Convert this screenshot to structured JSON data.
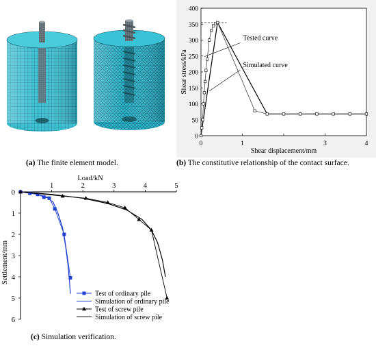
{
  "panel_a": {
    "caption_label": "(a)",
    "caption_text": " The finite element model.",
    "mesh_color": "#2cb6cc"
  },
  "panel_b": {
    "caption_label": "(b)",
    "caption_text": " The constitutive relationship of the contact surface."
  },
  "panel_c": {
    "caption_label": "(c)",
    "caption_text": " Simulation verification."
  },
  "chart_data": [
    {
      "id": "b",
      "type": "line",
      "title": "",
      "xlabel": "Shear displacement/mm",
      "ylabel": "Shear stress/kPa",
      "xlim": [
        0,
        4
      ],
      "ylim": [
        0,
        400
      ],
      "xticks": [
        0,
        1,
        2,
        3,
        4
      ],
      "xtick_labels": [
        "0",
        "1",
        "",
        "3",
        "4"
      ],
      "yticks": [
        0,
        50,
        100,
        150,
        200,
        250,
        300,
        350,
        400
      ],
      "ytick_labels": [
        "0",
        "50",
        "100",
        "150",
        "200",
        "250",
        "300",
        "350",
        "400"
      ],
      "grid": false,
      "annotations": [
        {
          "text": "Tested curve",
          "target_series": "Tested curve"
        },
        {
          "text": "Simulated curve",
          "target_series": "Simulated curve"
        }
      ],
      "peak_reference": {
        "x": [
          0,
          0.62
        ],
        "y": 355,
        "style": "dashed"
      },
      "series": [
        {
          "name": "Tested curve",
          "marker": "square-open",
          "x": [
            0.0,
            0.02,
            0.04,
            0.06,
            0.08,
            0.1,
            0.12,
            0.15,
            0.2,
            0.25,
            0.3,
            0.35,
            0.4,
            1.3,
            1.6,
            2.0,
            2.4,
            2.8,
            3.2,
            3.6,
            4.0
          ],
          "y": [
            0,
            25,
            50,
            100,
            135,
            170,
            205,
            240,
            300,
            330,
            345,
            352,
            355,
            78,
            68,
            68,
            68,
            68,
            68,
            68,
            68
          ]
        },
        {
          "name": "Simulated curve",
          "marker": "none",
          "x": [
            0.0,
            0.4,
            1.6,
            4.0
          ],
          "y": [
            0,
            355,
            68,
            68
          ]
        }
      ]
    },
    {
      "id": "c",
      "type": "line",
      "title": "",
      "xlabel": "Load/kN",
      "ylabel": "Settlement/mm",
      "xlim": [
        0,
        5
      ],
      "ylim": [
        0,
        6
      ],
      "y_inverted": true,
      "x_axis_position": "top",
      "xticks": [
        0,
        1,
        2,
        3,
        4,
        5
      ],
      "xtick_labels": [
        "0",
        "1",
        "2",
        "3",
        "4",
        "5"
      ],
      "yticks": [
        0,
        1,
        2,
        3,
        4,
        5,
        6
      ],
      "ytick_labels": [
        "0",
        "1",
        "2",
        "3",
        "4",
        "5",
        "6"
      ],
      "grid": false,
      "legend_position": "bottom-right",
      "series": [
        {
          "name": "Test of ordinary pile",
          "color": "#1f3fd0",
          "marker": "square",
          "line": false,
          "x": [
            0.0,
            0.3,
            0.55,
            0.75,
            0.92,
            1.1,
            1.4,
            1.6
          ],
          "y": [
            0.0,
            0.07,
            0.12,
            0.25,
            0.3,
            0.8,
            2.0,
            4.05
          ]
        },
        {
          "name": "Simulation of ordinary pile",
          "color": "#1f3fd0",
          "marker": "none",
          "line": true,
          "x": [
            0.0,
            0.5,
            0.85,
            1.05,
            1.2,
            1.35,
            1.45,
            1.52,
            1.57,
            1.6
          ],
          "y": [
            0.0,
            0.1,
            0.25,
            0.5,
            1.0,
            1.7,
            2.6,
            3.4,
            4.2,
            4.8
          ]
        },
        {
          "name": "Test of screw pile",
          "color": "#000000",
          "marker": "triangle",
          "line": false,
          "x": [
            0.0,
            1.35,
            2.1,
            2.8,
            3.35,
            3.8,
            4.2,
            4.7
          ],
          "y": [
            0.0,
            0.2,
            0.3,
            0.5,
            0.75,
            1.3,
            1.8,
            5.0
          ]
        },
        {
          "name": "Simulation of screw pile",
          "color": "#000000",
          "marker": "none",
          "line": true,
          "x": [
            0.0,
            1.0,
            2.0,
            2.8,
            3.4,
            3.9,
            4.2,
            4.4,
            4.55,
            4.65
          ],
          "y": [
            0.0,
            0.12,
            0.3,
            0.55,
            0.85,
            1.3,
            1.8,
            2.4,
            3.2,
            4.0
          ]
        }
      ]
    }
  ]
}
